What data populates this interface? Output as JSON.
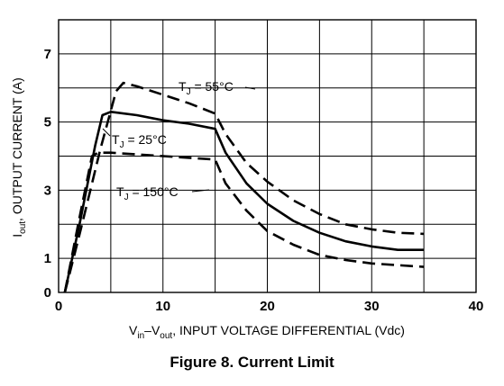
{
  "caption": "Figure 8. Current Limit",
  "chart_data": {
    "type": "line",
    "xlabel": {
      "main": "V",
      "sub1": "in",
      "mid": "–V",
      "sub2": "out",
      "rest": ", INPUT VOLTAGE DIFFERENTIAL (Vdc)"
    },
    "ylabel": {
      "main": "I",
      "sub": "out",
      "rest": ", OUTPUT CURRENT (A)"
    },
    "xlim": [
      0,
      40
    ],
    "ylim": [
      0,
      8
    ],
    "xticks": [
      0,
      10,
      20,
      30,
      40
    ],
    "yticks": [
      0,
      1,
      3,
      5,
      7
    ],
    "grid": true,
    "series": [
      {
        "name": {
          "main": "T",
          "sub": "J",
          "rest": " = 55°C"
        },
        "line_style": "dashed",
        "x": [
          0.6,
          2.0,
          4.0,
          5.5,
          6.2,
          7.5,
          10,
          12.5,
          15.0,
          16,
          18,
          20,
          22.5,
          25,
          27.5,
          30,
          32.5,
          35
        ],
        "y": [
          0,
          1.7,
          4.2,
          5.9,
          6.15,
          6.05,
          5.8,
          5.55,
          5.25,
          4.65,
          3.8,
          3.25,
          2.7,
          2.3,
          2.0,
          1.85,
          1.75,
          1.72
        ]
      },
      {
        "name": {
          "main": "T",
          "sub": "J",
          "rest": " = 25°C"
        },
        "line_style": "solid",
        "x": [
          0.6,
          2.0,
          3.5,
          4.2,
          5.0,
          7.5,
          10,
          12.5,
          15.0,
          16,
          18,
          20,
          22.5,
          25,
          27.5,
          30,
          32.5,
          35
        ],
        "y": [
          0,
          2.0,
          4.3,
          5.2,
          5.3,
          5.2,
          5.05,
          4.95,
          4.8,
          4.1,
          3.2,
          2.6,
          2.1,
          1.75,
          1.5,
          1.35,
          1.25,
          1.25
        ]
      },
      {
        "name": {
          "main": "T",
          "sub": "J",
          "rest": " = 150°C"
        },
        "line_style": "dashed",
        "x": [
          0.6,
          2.0,
          3.2,
          3.8,
          5,
          7.5,
          10,
          12.5,
          15.0,
          16,
          18,
          20,
          22.5,
          25,
          27.5,
          30,
          32.5,
          35
        ],
        "y": [
          0,
          2.2,
          4.0,
          4.1,
          4.1,
          4.05,
          4.0,
          3.95,
          3.9,
          3.2,
          2.4,
          1.8,
          1.4,
          1.1,
          0.95,
          0.85,
          0.8,
          0.75
        ]
      }
    ]
  }
}
